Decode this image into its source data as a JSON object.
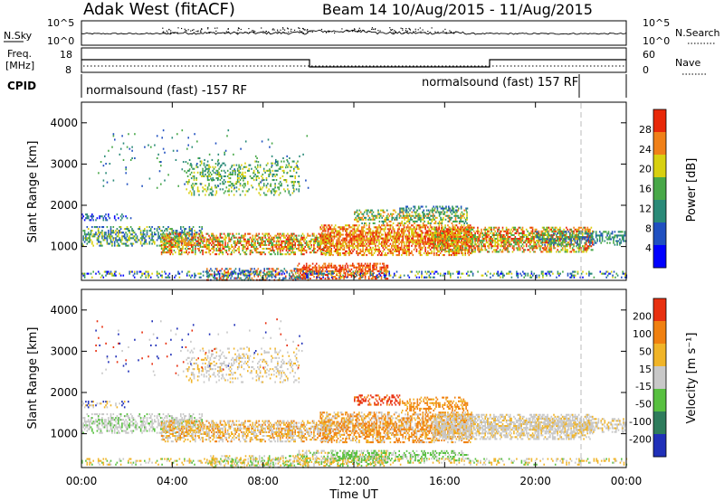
{
  "header": {
    "site": "Adak West (fitACF)",
    "beam_date": "Beam 14  10/Aug/2015 - 11/Aug/2015"
  },
  "panels": {
    "nsky_label": "N.Sky",
    "nsky_ticks": [
      "10^5",
      "10^0"
    ],
    "nsearch_label": "N.Search",
    "nsearch_ticks": [
      "10^5",
      "10^0"
    ],
    "freq_label_1": "Freq.",
    "freq_label_2": "[MHz]",
    "freq_ticks": [
      "18",
      "8"
    ],
    "nave_label": "Nave",
    "nave_ticks": [
      "60",
      "0"
    ],
    "cpid_label": "CPID",
    "cpid_1": "normalsound (fast) -157 RF",
    "cpid_2": "normalsound (fast) 157 RF"
  },
  "chart_data": [
    {
      "type": "heatmap",
      "quantity": "Power",
      "ylabel": "Slant Range [km]",
      "yticks": [
        "4000",
        "3000",
        "2000",
        "1000"
      ],
      "ylim": [
        180,
        4500
      ],
      "xlim": [
        "00:00",
        "24:00"
      ],
      "colorbar_label": "Power [dB]",
      "colorbar_ticks": [
        "28",
        "24",
        "20",
        "16",
        "12",
        "8",
        "4"
      ],
      "colors": [
        "#0000ff",
        "#2050c0",
        "#2a8a78",
        "#48a848",
        "#d8d010",
        "#f08018",
        "#e82808"
      ]
    },
    {
      "type": "heatmap",
      "quantity": "Velocity",
      "ylabel": "Slant Range [km]",
      "yticks": [
        "4000",
        "3000",
        "2000",
        "1000"
      ],
      "ylim": [
        180,
        4500
      ],
      "xlim": [
        "00:00",
        "24:00"
      ],
      "xlabel": "Time UT",
      "xticks": [
        "00:00",
        "04:00",
        "08:00",
        "12:00",
        "16:00",
        "20:00",
        "00:00"
      ],
      "colorbar_label": "Velocity [m s⁻¹]",
      "colorbar_ticks": [
        "200",
        "100",
        "50",
        "15",
        "-15",
        "-50",
        "-100",
        "-200"
      ],
      "colors": [
        "#2030b8",
        "#2e7c5c",
        "#58c040",
        "#c8c8c8",
        "#f0b428",
        "#f08010",
        "#e83010"
      ]
    }
  ]
}
